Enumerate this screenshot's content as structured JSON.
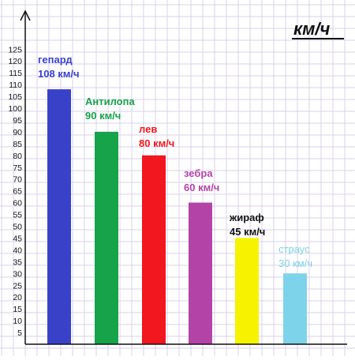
{
  "chart_data": {
    "type": "bar",
    "unit_label": "км/ч",
    "categories": [
      "гепард",
      "Антилопа",
      "лев",
      "зебра",
      "жираф",
      "страус"
    ],
    "values": [
      108,
      90,
      80,
      60,
      45,
      30
    ],
    "value_labels": [
      "108 км/ч",
      "90 км/ч",
      "80 км/ч",
      "60 км/ч",
      "45 км/ч",
      "30 км/ч"
    ],
    "colors": [
      "#3a41c9",
      "#16a34a",
      "#f2161e",
      "#b443a8",
      "#f7f200",
      "#7dd3ea"
    ],
    "label_colors": [
      "#3a41c9",
      "#16a34a",
      "#f2161e",
      "#b443a8",
      "#111111",
      "#7dd3ea"
    ],
    "y_ticks": [
      5,
      10,
      15,
      20,
      25,
      30,
      35,
      40,
      45,
      50,
      55,
      60,
      65,
      70,
      75,
      80,
      85,
      90,
      95,
      100,
      105,
      110,
      115,
      120,
      125
    ],
    "ylim": [
      0,
      130
    ],
    "grid": true,
    "xlabel": "",
    "ylabel": ""
  }
}
